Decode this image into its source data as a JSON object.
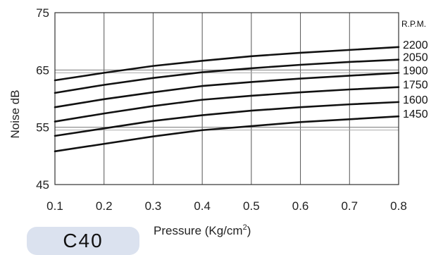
{
  "badge": {
    "text": "C40"
  },
  "chart_data": {
    "type": "line",
    "title": "",
    "xlabel": "Pressure (Kg/cm²)",
    "ylabel": "Noise dB",
    "legend_title": "R.P.M.",
    "xlim": [
      0.1,
      0.8
    ],
    "ylim": [
      45,
      75
    ],
    "x_ticks": [
      "0.1",
      "0.2",
      "0.3",
      "0.4",
      "0.5",
      "0.6",
      "0.7",
      "0.8"
    ],
    "y_ticks": [
      "45",
      "55",
      "65",
      "75"
    ],
    "grid": true,
    "x": [
      0.1,
      0.2,
      0.3,
      0.4,
      0.5,
      0.6,
      0.7,
      0.8
    ],
    "series": [
      {
        "name": "2200",
        "values": [
          63.2,
          64.5,
          65.7,
          66.6,
          67.4,
          68.0,
          68.5,
          69.0
        ]
      },
      {
        "name": "2050",
        "values": [
          61.0,
          62.4,
          63.6,
          64.6,
          65.3,
          65.9,
          66.4,
          66.8
        ]
      },
      {
        "name": "1900",
        "values": [
          58.5,
          59.9,
          61.1,
          62.2,
          62.9,
          63.5,
          64.0,
          64.5
        ]
      },
      {
        "name": "1750",
        "values": [
          56.0,
          57.4,
          58.7,
          59.8,
          60.5,
          61.1,
          61.6,
          62.0
        ]
      },
      {
        "name": "1600",
        "values": [
          53.5,
          54.8,
          56.1,
          57.1,
          57.9,
          58.5,
          59.0,
          59.4
        ]
      },
      {
        "name": "1450",
        "values": [
          50.8,
          52.1,
          53.4,
          54.5,
          55.2,
          55.9,
          56.4,
          56.9
        ]
      }
    ]
  }
}
